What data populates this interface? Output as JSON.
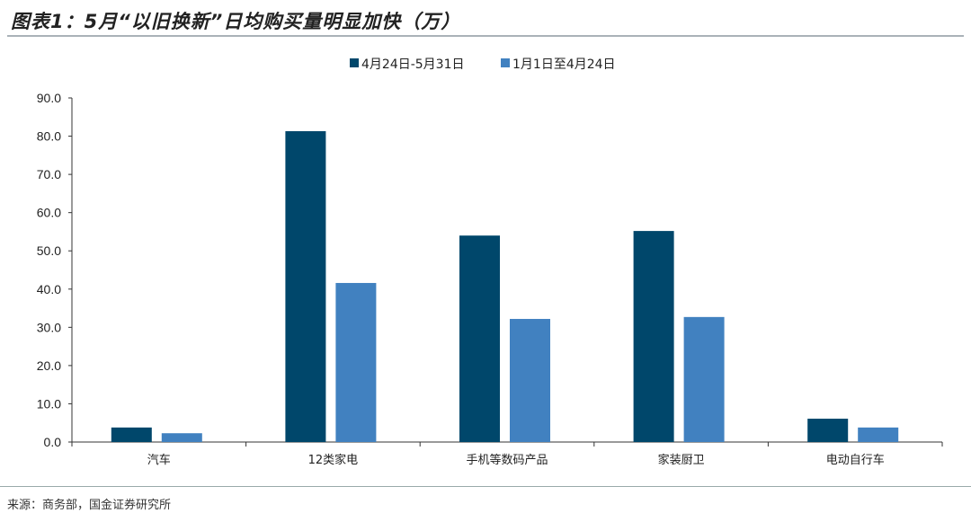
{
  "title": "图表1：5月“以旧换新”日均购买量明显加快（万）",
  "source": "来源：商务部，国金证券研究所",
  "chart_data": {
    "type": "bar",
    "categories": [
      "汽车",
      "12类家电",
      "手机等数码产品",
      "家装厨卫",
      "电动自行车"
    ],
    "series": [
      {
        "name": "4月24日-5月31日",
        "values": [
          3.8,
          81.3,
          54.0,
          55.2,
          6.1
        ],
        "color": "#00476b"
      },
      {
        "name": "1月1日至4月24日",
        "values": [
          2.3,
          41.6,
          32.2,
          32.7,
          3.8
        ],
        "color": "#4181c0"
      }
    ],
    "ylim": [
      0,
      90
    ],
    "yticks": [
      "0.0",
      "10.0",
      "20.0",
      "30.0",
      "40.0",
      "50.0",
      "60.0",
      "70.0",
      "80.0",
      "90.0"
    ],
    "grid": false,
    "legend": "top"
  }
}
